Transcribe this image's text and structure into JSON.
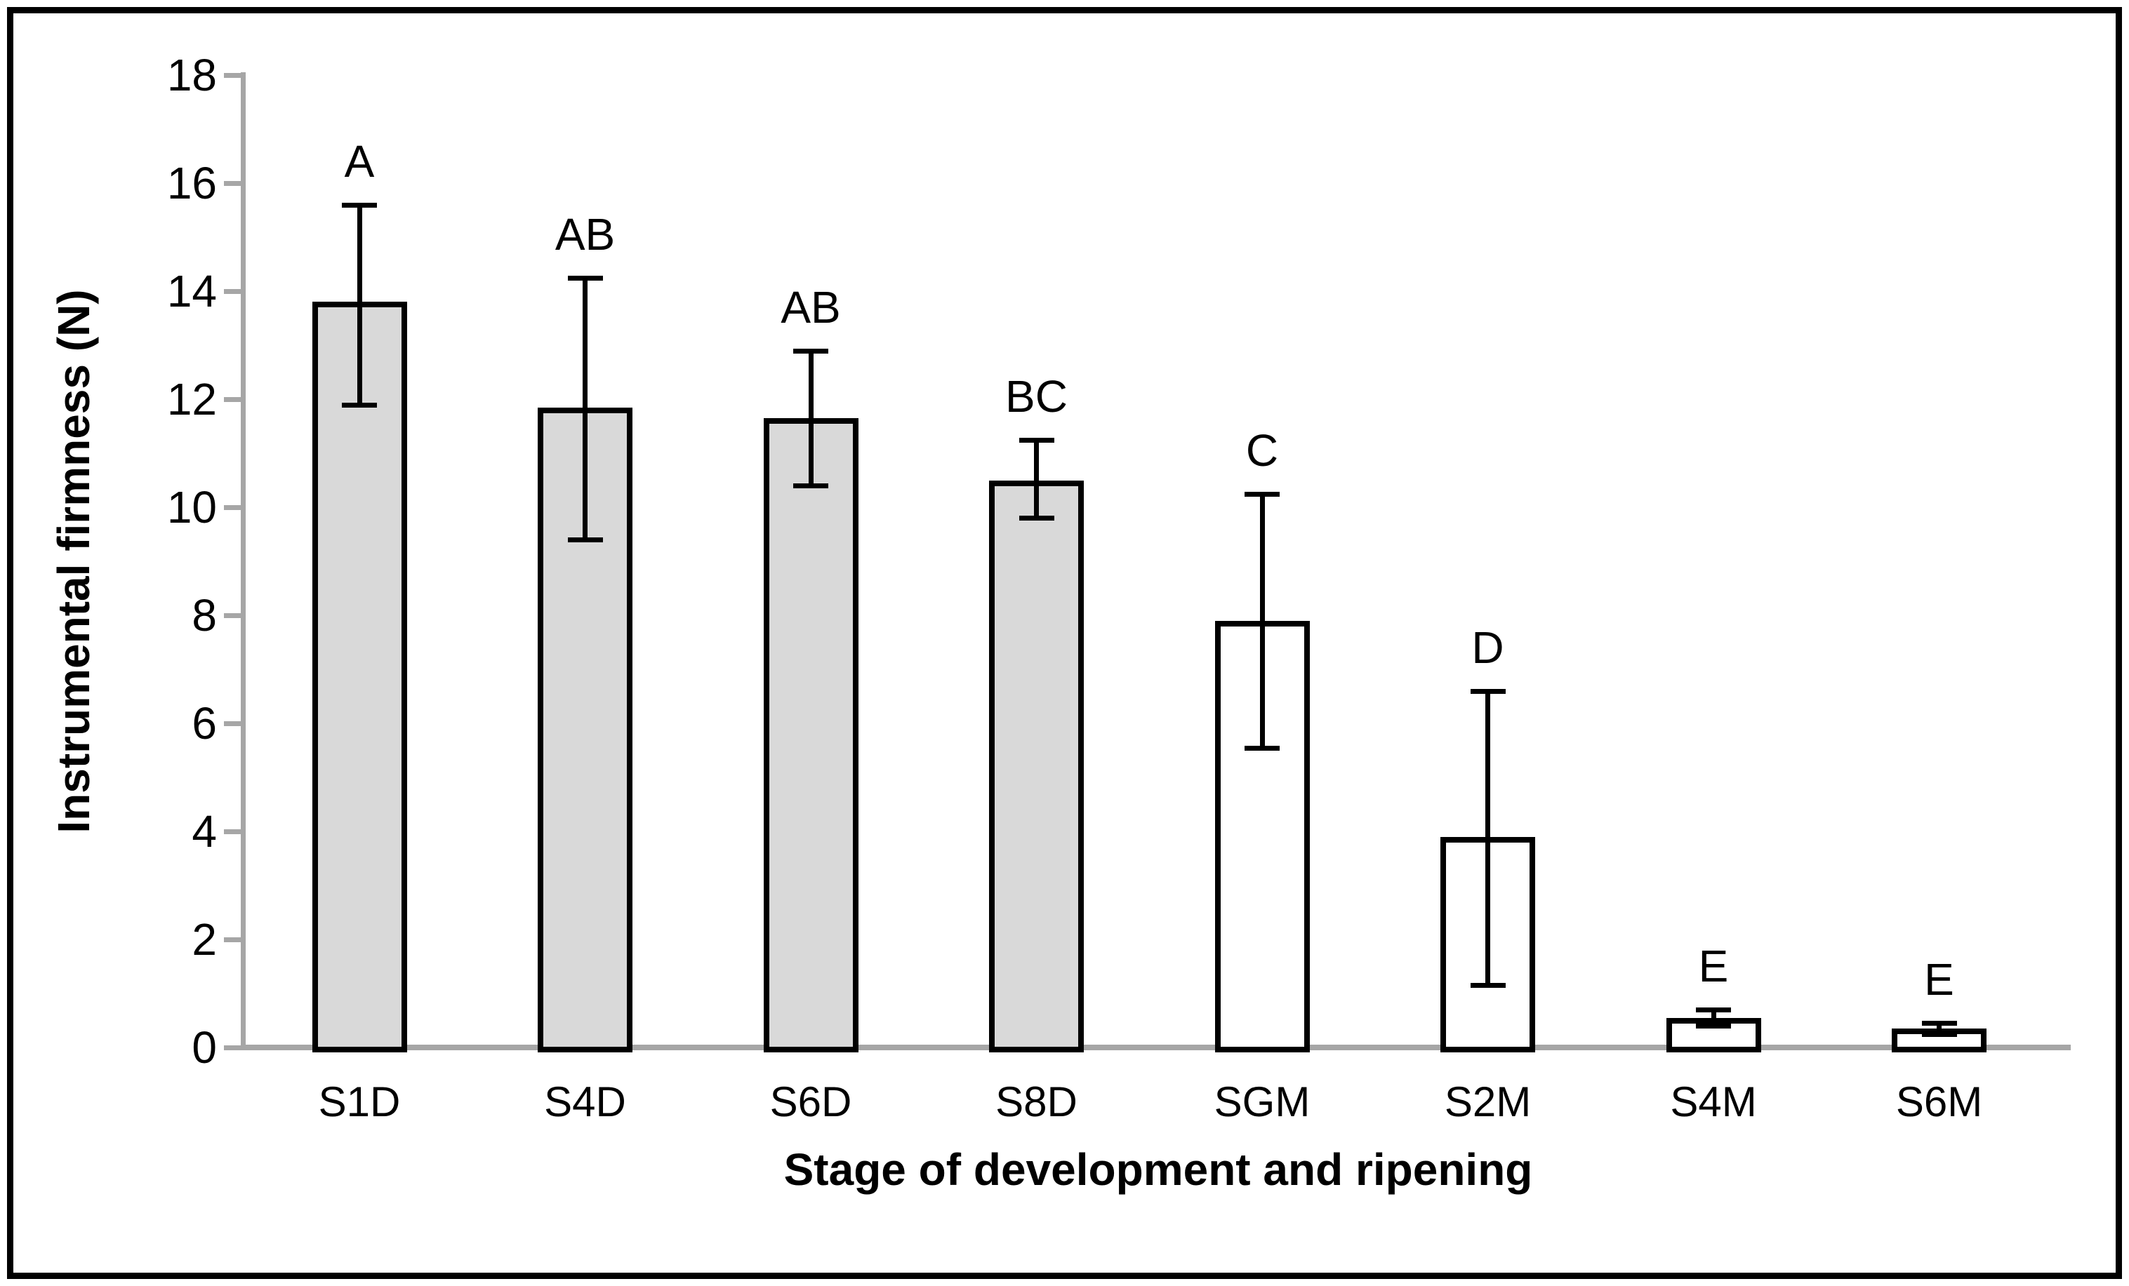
{
  "chart_data": {
    "type": "bar",
    "title": "",
    "xlabel": "Stage of development and ripening",
    "ylabel": "Instrumental firmness (N)",
    "ylim": [
      0,
      18
    ],
    "yticks": [
      0,
      2,
      4,
      6,
      8,
      10,
      12,
      14,
      16,
      18
    ],
    "grid": false,
    "legend": false,
    "categories": [
      "S1D",
      "S4D",
      "S6D",
      "S8D",
      "SGM",
      "S2M",
      "S4M",
      "S6M"
    ],
    "values": [
      13.8,
      11.85,
      11.65,
      10.5,
      7.9,
      3.9,
      0.55,
      0.35
    ],
    "error_upper": [
      15.6,
      14.25,
      12.9,
      11.25,
      10.25,
      6.6,
      0.7,
      0.45
    ],
    "error_lower": [
      11.9,
      9.4,
      10.4,
      9.8,
      5.55,
      1.15,
      0.4,
      0.25
    ],
    "sig_letters": [
      "A",
      "AB",
      "AB",
      "BC",
      "C",
      "D",
      "E",
      "E"
    ],
    "bar_fills": [
      "#d9d9d9",
      "#d9d9d9",
      "#d9d9d9",
      "#d9d9d9",
      "#ffffff",
      "#ffffff",
      "#ffffff",
      "#ffffff"
    ],
    "colors": {
      "bar_border": "#000000",
      "axis": "#a6a6a6",
      "error_bar": "#000000",
      "text": "#000000",
      "frame": "#000000",
      "background": "#ffffff"
    }
  }
}
